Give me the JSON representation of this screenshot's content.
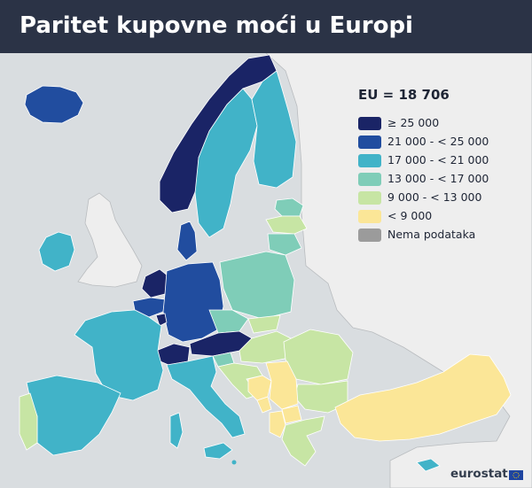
{
  "header": {
    "title": "Paritet kupovne moći u Europi"
  },
  "legend": {
    "eu_total": "EU = 18 706",
    "classes": [
      {
        "label": "≥ 25 000",
        "color": "#1a2466"
      },
      {
        "label": "21 000 - < 25 000",
        "color": "#214d9f"
      },
      {
        "label": "17 000 - < 21 000",
        "color": "#41b3c8"
      },
      {
        "label": "13 000 - < 17 000",
        "color": "#7fcdb8"
      },
      {
        "label": "9 000 - < 13 000",
        "color": "#c7e5a4"
      },
      {
        "label": "< 9 000",
        "color": "#fbe697"
      },
      {
        "label": "Nema podataka",
        "color": "#9b9b9b"
      }
    ]
  },
  "colors": {
    "sea": "#d9dde0",
    "land_outside": "#eeeeee",
    "header_bg": "#2b3346",
    "eu_flag": "#1f45a0"
  },
  "brand": {
    "logo_text": "eurostat"
  }
}
